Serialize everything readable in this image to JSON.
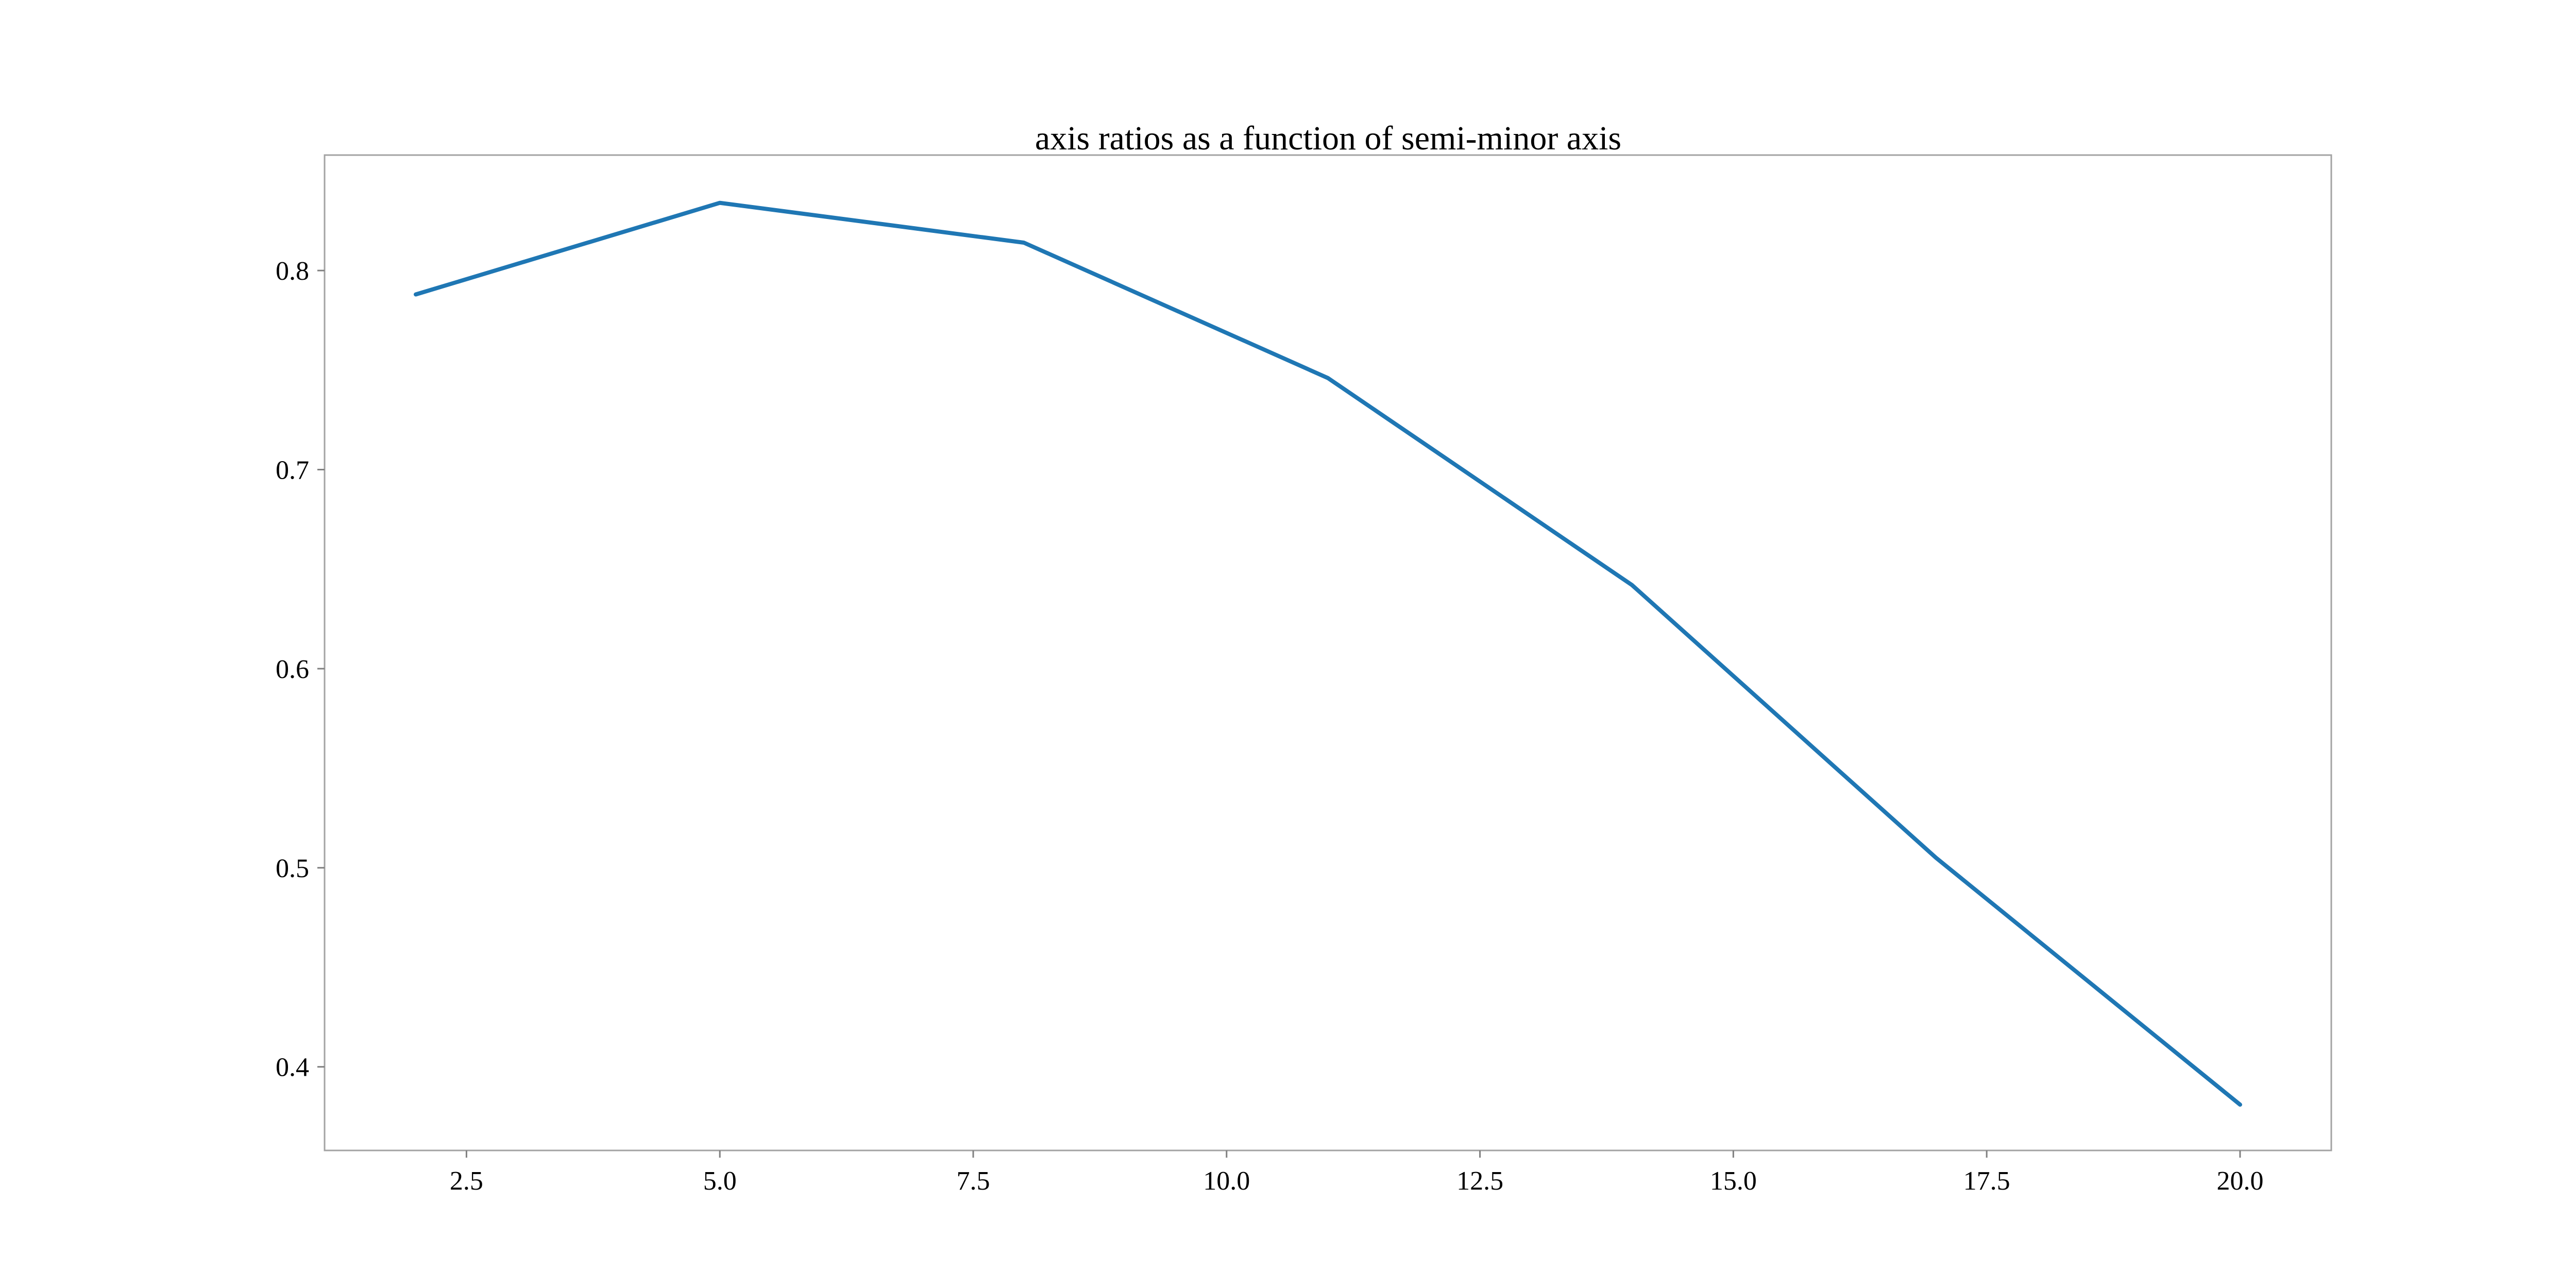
{
  "chart_data": {
    "type": "line",
    "title": "axis ratios as a function of semi-minor axis",
    "xlabel": "",
    "ylabel": "",
    "xlim": [
      1.1,
      20.9
    ],
    "ylim": [
      0.358,
      0.858
    ],
    "x_ticks": [
      2.5,
      5.0,
      7.5,
      10.0,
      12.5,
      15.0,
      17.5,
      20.0
    ],
    "x_tick_labels": [
      "2.5",
      "5.0",
      "7.5",
      "10.0",
      "12.5",
      "15.0",
      "17.5",
      "20.0"
    ],
    "y_ticks": [
      0.4,
      0.5,
      0.6,
      0.7,
      0.8
    ],
    "y_tick_labels": [
      "0.4",
      "0.5",
      "0.6",
      "0.7",
      "0.8"
    ],
    "grid": false,
    "legend": "none",
    "series": [
      {
        "color": "#1f77b4",
        "x": [
          2,
          5,
          8,
          11,
          14,
          17,
          20
        ],
        "y": [
          0.788,
          0.834,
          0.814,
          0.746,
          0.642,
          0.505,
          0.381
        ]
      }
    ]
  }
}
